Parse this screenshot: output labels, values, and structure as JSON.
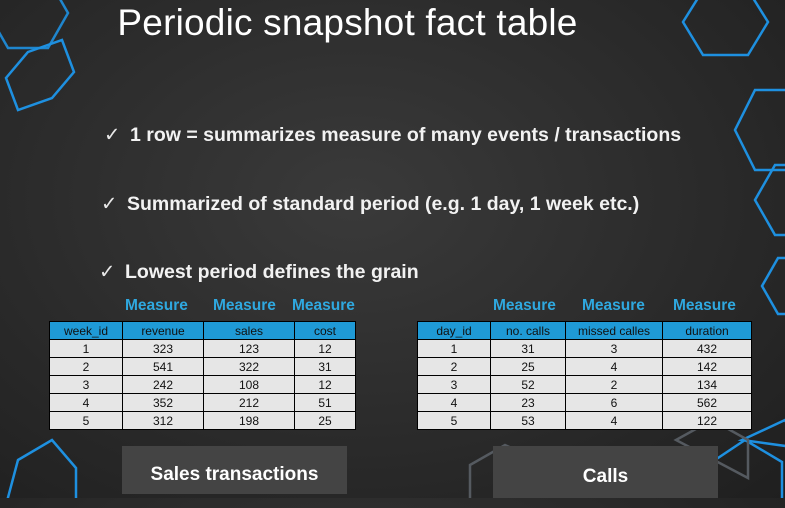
{
  "slide": {
    "title": "Periodic snapshot fact table",
    "bullets": [
      {
        "text": "1 row = summarizes measure of many events / transactions"
      },
      {
        "text": "Summarized of standard period (e.g. 1 day, 1 week etc.)"
      },
      {
        "text": "Lowest period defines the grain"
      }
    ],
    "check_glyph": "✓"
  },
  "sales": {
    "measure_labels": [
      "Measure",
      "Measure",
      "Measure"
    ],
    "headers": [
      "week_id",
      "revenue",
      "sales",
      "cost"
    ],
    "rows": [
      [
        "1",
        "323",
        "123",
        "12"
      ],
      [
        "2",
        "541",
        "322",
        "31"
      ],
      [
        "3",
        "242",
        "108",
        "12"
      ],
      [
        "4",
        "352",
        "212",
        "51"
      ],
      [
        "5",
        "312",
        "198",
        "25"
      ]
    ],
    "caption": "Sales transactions"
  },
  "calls": {
    "measure_labels": [
      "Measure",
      "Measure",
      "Measure"
    ],
    "headers": [
      "day_id",
      "no. calls",
      "missed calles",
      "duration"
    ],
    "rows": [
      [
        "1",
        "31",
        "3",
        "432"
      ],
      [
        "2",
        "25",
        "4",
        "142"
      ],
      [
        "3",
        "52",
        "2",
        "134"
      ],
      [
        "4",
        "23",
        "6",
        "562"
      ],
      [
        "5",
        "53",
        "4",
        "122"
      ]
    ],
    "caption": "Calls"
  },
  "colors": {
    "accent_blue": "#1f9ad6",
    "hexagon_blue": "#1e90e0",
    "background": "#2b2b2b",
    "cell_background": "#e6e6e6"
  }
}
